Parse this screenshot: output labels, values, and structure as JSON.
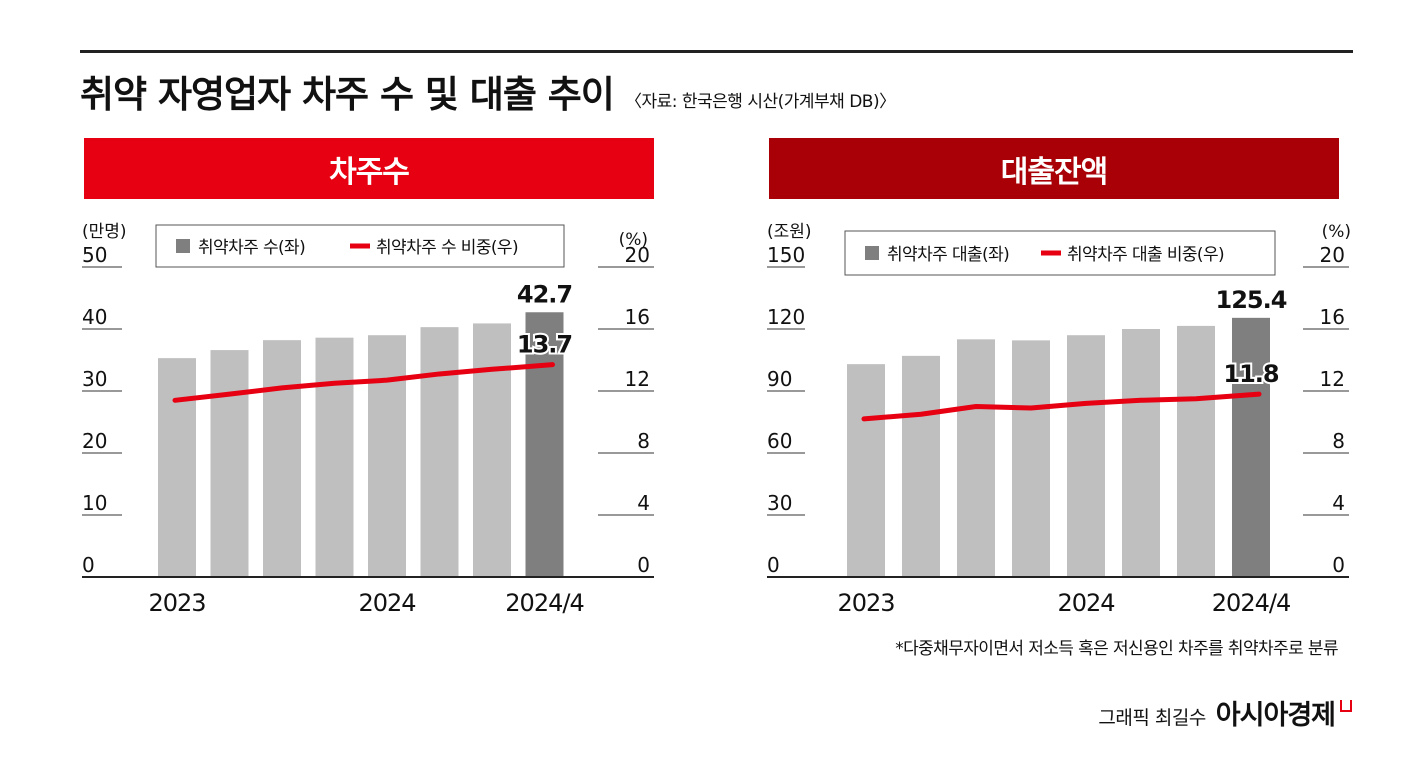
{
  "header": {
    "title": "취약 자영업자 차주 수 및 대출 추이",
    "source": "〈자료: 한국은행 시산(가계부채 DB)〉"
  },
  "colors": {
    "red_header": "#e60012",
    "dark_red_header": "#a90007",
    "bar": "#bfbfbf",
    "bar_highlight": "#7f7f7f",
    "line": "#e60012"
  },
  "chart_data": [
    {
      "type": "bar",
      "panel_title": "차주수",
      "left_unit": "(만명)",
      "right_unit": "(%)",
      "ylim": [
        0,
        50
      ],
      "y2lim": [
        0,
        20
      ],
      "yticks": [
        "0",
        "10",
        "20",
        "30",
        "40",
        "50"
      ],
      "y2ticks": [
        "0",
        "4",
        "8",
        "12",
        "16",
        "20"
      ],
      "x_labels": [
        {
          "index": 0,
          "label": "2023"
        },
        {
          "index": 4,
          "label": "2024"
        },
        {
          "index": 7,
          "label": "2024/4"
        }
      ],
      "series": [
        {
          "name": "취약차주 수(좌)",
          "kind": "bar",
          "axis": "left",
          "values": [
            35.3,
            36.6,
            38.2,
            38.6,
            39.0,
            40.3,
            40.9,
            42.7
          ]
        },
        {
          "name": "취약차주 수 비중(우)",
          "kind": "line",
          "axis": "right",
          "values": [
            11.4,
            11.8,
            12.2,
            12.5,
            12.7,
            13.1,
            13.4,
            13.7
          ]
        }
      ],
      "data_labels": {
        "bar_last": "42.7",
        "line_last": "13.7"
      },
      "grid": "left and right tick marks"
    },
    {
      "type": "bar",
      "panel_title": "대출잔액",
      "left_unit": "(조원)",
      "right_unit": "(%)",
      "ylim": [
        0,
        150
      ],
      "y2lim": [
        0,
        20
      ],
      "yticks": [
        "0",
        "30",
        "60",
        "90",
        "120",
        "150"
      ],
      "y2ticks": [
        "0",
        "4",
        "8",
        "12",
        "16",
        "20"
      ],
      "x_labels": [
        {
          "index": 0,
          "label": "2023"
        },
        {
          "index": 4,
          "label": "2024"
        },
        {
          "index": 7,
          "label": "2024/4"
        }
      ],
      "series": [
        {
          "name": "취약차주 대출(좌)",
          "kind": "bar",
          "axis": "left",
          "values": [
            103,
            107,
            115,
            114.5,
            117,
            120,
            121.5,
            125.4
          ]
        },
        {
          "name": "취약차주  대출 비중(우)",
          "kind": "line",
          "axis": "right",
          "values": [
            10.2,
            10.5,
            11.0,
            10.9,
            11.2,
            11.4,
            11.5,
            11.8
          ]
        }
      ],
      "data_labels": {
        "bar_last": "125.4",
        "line_last": "11.8"
      },
      "grid": "left and right tick marks"
    }
  ],
  "footer": {
    "footnote": "*다중채무자이면서 저소득 혹은 저신용인 차주를 취약차주로 분류",
    "credit": "그래픽 최길수",
    "brand": "아시아경제"
  }
}
